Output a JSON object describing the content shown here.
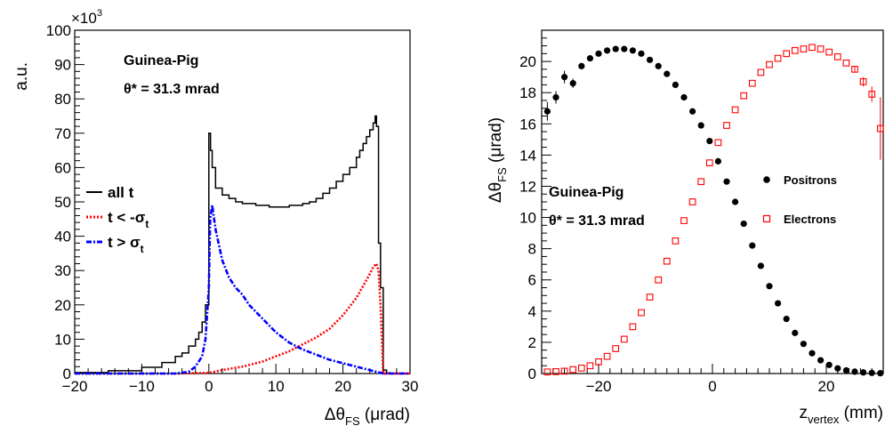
{
  "chart_data": [
    {
      "type": "line",
      "xlabel": "Δθ",
      "xlabel_sub": "FS",
      "xlabel_unit": " (μrad)",
      "ylabel": "a.u.",
      "y_multiplier": "×10",
      "y_multiplier_exp": "3",
      "xlim": [
        -20,
        30
      ],
      "ylim": [
        0,
        100
      ],
      "xticks": [
        "−20",
        "−10",
        "0",
        "10",
        "20",
        "30"
      ],
      "yticks": [
        "0",
        "10",
        "20",
        "30",
        "40",
        "50",
        "60",
        "70",
        "80",
        "90",
        "100"
      ],
      "annotation_line1": "Guinea-Pig",
      "annotation_line2": "θ* = 31.3 mrad",
      "legend": [
        {
          "label": "all t",
          "sub": ""
        },
        {
          "label": "t < -σ",
          "sub": "t"
        },
        {
          "label": "t >  σ",
          "sub": "t"
        }
      ],
      "colors": {
        "all": "#000000",
        "neg": "#ff0000",
        "pos": "#0000ff"
      },
      "series": [
        {
          "key": "all",
          "style": "step",
          "x": [
            -20,
            -15,
            -10,
            -7,
            -5,
            -4,
            -3,
            -2,
            -1.5,
            -1,
            -0.5,
            0,
            0.25,
            0.5,
            1,
            2,
            3,
            4,
            5,
            6,
            7,
            8,
            9,
            10,
            11,
            12,
            13,
            14,
            15,
            16,
            17,
            18,
            19,
            20,
            21,
            22,
            22.5,
            23,
            23.5,
            24,
            24.5,
            24.8,
            25,
            25.3,
            25.6,
            26,
            26.5,
            27,
            30
          ],
          "y": [
            0.3,
            0.8,
            1.8,
            3.2,
            5,
            6,
            8,
            10,
            12,
            15,
            20,
            70,
            65,
            60,
            54,
            52,
            51,
            50,
            49.5,
            49.5,
            49,
            49,
            48.5,
            48.5,
            48.5,
            49,
            49,
            49.5,
            50,
            51,
            52.5,
            54,
            56,
            58,
            60,
            63,
            65,
            67,
            69,
            71,
            73,
            75,
            72,
            38,
            25,
            1,
            0.2,
            0,
            0
          ]
        },
        {
          "key": "neg",
          "style": "dotted",
          "x": [
            -20,
            -5,
            0,
            2,
            5,
            8,
            10,
            12,
            14,
            16,
            18,
            19,
            20,
            21,
            22,
            23,
            24,
            24.5,
            25,
            25.3,
            25.6,
            26,
            30
          ],
          "y": [
            0,
            0,
            0.2,
            1,
            2,
            3.5,
            5,
            6.5,
            8.5,
            10.5,
            13,
            15,
            17,
            19.5,
            22,
            25.5,
            29,
            31,
            32,
            30,
            20,
            0,
            0
          ]
        },
        {
          "key": "pos",
          "style": "dashdot",
          "x": [
            -20,
            -5,
            -3,
            -2,
            -1,
            -0.5,
            0,
            0.2,
            0.5,
            1,
            2,
            3,
            4,
            5,
            6,
            8,
            10,
            12,
            14,
            16,
            18,
            20,
            22,
            24,
            25,
            26,
            30
          ],
          "y": [
            0,
            0,
            0.5,
            2,
            5,
            10,
            25,
            45,
            49,
            42,
            33,
            28,
            25,
            23,
            20,
            16,
            12,
            9,
            7,
            5.5,
            4,
            3,
            2,
            1,
            0.5,
            0,
            0
          ]
        }
      ]
    },
    {
      "type": "scatter",
      "xlabel": "z",
      "xlabel_sub": "vertex",
      "xlabel_unit": " (mm)",
      "ylabel": "Δθ",
      "ylabel_sub": "FS",
      "ylabel_unit": " (μrad)",
      "xlim": [
        -30,
        30
      ],
      "ylim": [
        0,
        22
      ],
      "xticks": [
        "−20",
        "0",
        "20"
      ],
      "yticks": [
        "0",
        "2",
        "4",
        "6",
        "8",
        "10",
        "12",
        "14",
        "16",
        "18",
        "20"
      ],
      "annotation_line1": "Guinea-Pig",
      "annotation_line2": "θ* = 31.3 mrad",
      "legend": [
        {
          "label": "Positrons"
        },
        {
          "label": "Electrons"
        }
      ],
      "colors": {
        "positrons": "#000000",
        "electrons": "#ff0000"
      },
      "series": [
        {
          "name": "Positrons",
          "marker": "filled-circle",
          "x": [
            -29,
            -27.5,
            -26,
            -24.5,
            -23,
            -21.5,
            -20,
            -18.5,
            -17,
            -15.5,
            -14,
            -12.5,
            -11,
            -9.5,
            -8,
            -6.5,
            -5,
            -3.5,
            -2,
            -0.5,
            1,
            2.5,
            4,
            5.5,
            7,
            8.5,
            10,
            11.5,
            13,
            14.5,
            16,
            17.5,
            19,
            20.5,
            22,
            23.5,
            25,
            26.5,
            28,
            29.5
          ],
          "y": [
            16.8,
            17.7,
            19.0,
            18.6,
            19.7,
            20.2,
            20.5,
            20.7,
            20.8,
            20.8,
            20.7,
            20.5,
            20.1,
            19.7,
            19.2,
            18.5,
            17.7,
            16.8,
            15.9,
            14.9,
            13.6,
            12.3,
            11.0,
            9.6,
            8.2,
            6.9,
            5.6,
            4.5,
            3.5,
            2.6,
            1.9,
            1.3,
            0.85,
            0.55,
            0.33,
            0.2,
            0.12,
            0.07,
            0.04,
            0.02
          ],
          "err": [
            0.6,
            0.4,
            0.4,
            0.3,
            0.2,
            0.1,
            0.1,
            0.1,
            0.1,
            0.1,
            0.1,
            0.1,
            0.1,
            0.1,
            0.1,
            0.1,
            0.1,
            0.1,
            0.1,
            0.1,
            0.1,
            0.1,
            0.1,
            0.1,
            0.1,
            0.1,
            0.1,
            0.1,
            0.1,
            0.1,
            0.1,
            0.1,
            0.1,
            0.1,
            0.1,
            0.1,
            0.1,
            0.1,
            0.1,
            0.1
          ]
        },
        {
          "name": "Electrons",
          "marker": "open-square",
          "x": [
            -29,
            -27.5,
            -26,
            -24.5,
            -23,
            -21.5,
            -20,
            -18.5,
            -17,
            -15.5,
            -14,
            -12.5,
            -11,
            -9.5,
            -8,
            -6.5,
            -5,
            -3.5,
            -2,
            -0.5,
            1,
            2.5,
            4,
            5.5,
            7,
            8.5,
            10,
            11.5,
            13,
            14.5,
            16,
            17.5,
            19,
            20.5,
            22,
            23.5,
            25,
            26.5,
            28,
            29.5
          ],
          "y": [
            0.1,
            0.12,
            0.15,
            0.25,
            0.35,
            0.5,
            0.75,
            1.1,
            1.6,
            2.2,
            3.0,
            3.9,
            4.9,
            6.0,
            7.2,
            8.5,
            9.8,
            11.0,
            12.3,
            13.5,
            14.8,
            15.9,
            16.9,
            17.8,
            18.6,
            19.3,
            19.8,
            20.2,
            20.5,
            20.7,
            20.8,
            20.9,
            20.8,
            20.6,
            20.3,
            19.9,
            19.5,
            18.7,
            17.9,
            15.7
          ],
          "err": [
            0.05,
            0.05,
            0.05,
            0.05,
            0.05,
            0.05,
            0.05,
            0.05,
            0.05,
            0.05,
            0.1,
            0.1,
            0.1,
            0.1,
            0.1,
            0.1,
            0.1,
            0.1,
            0.1,
            0.1,
            0.1,
            0.1,
            0.1,
            0.1,
            0.1,
            0.1,
            0.1,
            0.1,
            0.1,
            0.1,
            0.1,
            0.1,
            0.1,
            0.1,
            0.1,
            0.1,
            0.2,
            0.3,
            0.5,
            2.0
          ]
        }
      ]
    }
  ]
}
